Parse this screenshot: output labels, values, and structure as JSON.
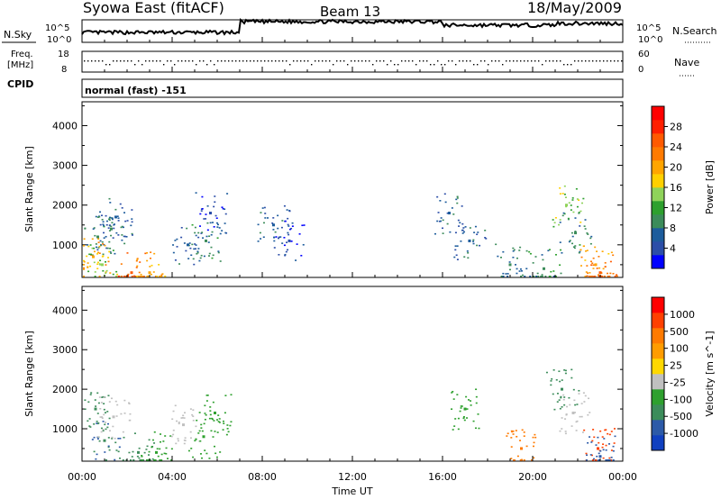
{
  "header": {
    "title": "Syowa East (fitACF)",
    "beam": "Beam 13",
    "date": "18/May/2009"
  },
  "left_labels": {
    "nsky": "N.Sky",
    "freq_line1": "Freq.",
    "freq_line2": "[MHz]",
    "cpid": "CPID"
  },
  "right_labels": {
    "nsearch": "N.Search",
    "nave": "Nave"
  },
  "strip_ticks": {
    "noise_high": "10^5",
    "noise_low": "10^0",
    "freq_high": "18",
    "freq_low": "8",
    "nave_high": "60",
    "nave_low": "0"
  },
  "cpid_text": "normal (fast) -151",
  "time_axis": {
    "label": "Time UT",
    "ticks": [
      "00:00",
      "04:00",
      "08:00",
      "12:00",
      "16:00",
      "20:00",
      "00:00"
    ]
  },
  "colors": {
    "power": [
      "#0000ff",
      "#2c4ea8",
      "#1d5c9c",
      "#3c8c5a",
      "#2ea02e",
      "#8fd35a",
      "#ffd000",
      "#ffa500",
      "#ff7a00",
      "#ff5a00",
      "#ff2000",
      "#ff0000"
    ],
    "velocity": [
      "#1040c0",
      "#2c5aa8",
      "#3c8c5a",
      "#2ea02e",
      "#c0c0c0",
      "#ffd800",
      "#ff9c00",
      "#ff7a00",
      "#ff4000",
      "#ff0000"
    ]
  },
  "chart_data": [
    {
      "type": "heatmap",
      "panel": "power",
      "ylabel": "Slant Range [km]",
      "xlim": [
        0,
        24
      ],
      "ylim": [
        180,
        4600
      ],
      "yticks": [
        1000,
        2000,
        3000,
        4000
      ],
      "colorbar": {
        "label": "Power [dB]",
        "range": [
          0,
          32
        ],
        "ticks": [
          "4",
          "8",
          "12",
          "16",
          "20",
          "24",
          "28"
        ]
      },
      "points": [
        {
          "x": 0.7,
          "y": 1200,
          "v": 8
        },
        {
          "x": 1.3,
          "y": 1400,
          "v": 8
        },
        {
          "x": 1.5,
          "y": 1700,
          "v": 6
        },
        {
          "x": 0.5,
          "y": 700,
          "v": 20
        },
        {
          "x": 0.9,
          "y": 500,
          "v": 14
        },
        {
          "x": 2.2,
          "y": 300,
          "v": 24
        },
        {
          "x": 3.0,
          "y": 300,
          "v": 20
        },
        {
          "x": 4.7,
          "y": 1000,
          "v": 6
        },
        {
          "x": 5.5,
          "y": 1100,
          "v": 8
        },
        {
          "x": 5.7,
          "y": 1800,
          "v": 4
        },
        {
          "x": 8.5,
          "y": 1500,
          "v": 6
        },
        {
          "x": 9.2,
          "y": 1100,
          "v": 4
        },
        {
          "x": 16.3,
          "y": 1800,
          "v": 6
        },
        {
          "x": 17.2,
          "y": 1100,
          "v": 6
        },
        {
          "x": 19.0,
          "y": 500,
          "v": 8
        },
        {
          "x": 20.5,
          "y": 400,
          "v": 10
        },
        {
          "x": 21.5,
          "y": 2000,
          "v": 14
        },
        {
          "x": 21.9,
          "y": 1300,
          "v": 8
        },
        {
          "x": 22.8,
          "y": 500,
          "v": 20
        },
        {
          "x": 23.0,
          "y": 300,
          "v": 24
        }
      ]
    },
    {
      "type": "heatmap",
      "panel": "velocity",
      "ylabel": "Slant Range [km]",
      "xlim": [
        0,
        24
      ],
      "ylim": [
        180,
        4600
      ],
      "yticks": [
        1000,
        2000,
        3000,
        4000
      ],
      "colorbar": {
        "label": "Velocity [m s^-1]",
        "ticks": [
          "1000",
          "500",
          "100",
          "25",
          "-25",
          "-100",
          "-500",
          "-1000"
        ]
      },
      "points": [
        {
          "x": 0.6,
          "y": 1500,
          "v": -300
        },
        {
          "x": 1.0,
          "y": 700,
          "v": -500
        },
        {
          "x": 1.4,
          "y": 1300,
          "v": 0
        },
        {
          "x": 2.5,
          "y": 400,
          "v": -200
        },
        {
          "x": 3.3,
          "y": 400,
          "v": -80
        },
        {
          "x": 4.5,
          "y": 1100,
          "v": 0
        },
        {
          "x": 5.4,
          "y": 800,
          "v": -60
        },
        {
          "x": 5.9,
          "y": 1400,
          "v": -30
        },
        {
          "x": 17.0,
          "y": 1500,
          "v": -60
        },
        {
          "x": 19.5,
          "y": 500,
          "v": 200
        },
        {
          "x": 21.3,
          "y": 2000,
          "v": -300
        },
        {
          "x": 21.8,
          "y": 1400,
          "v": 0
        },
        {
          "x": 22.9,
          "y": 500,
          "v": 800
        },
        {
          "x": 23.0,
          "y": 300,
          "v": -600
        }
      ]
    }
  ]
}
